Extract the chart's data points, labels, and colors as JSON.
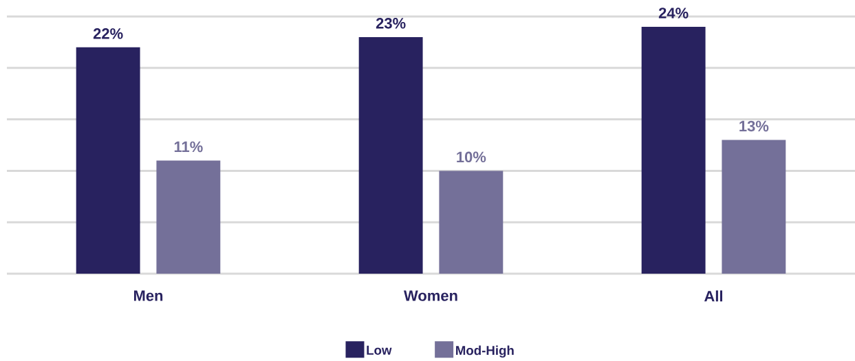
{
  "chart_data": {
    "type": "bar",
    "categories": [
      "Men",
      "Women",
      "All"
    ],
    "series": [
      {
        "name": "Low",
        "color": "#28225f",
        "values": [
          22,
          23,
          24
        ],
        "value_labels": [
          "22%",
          "23%",
          "24%"
        ]
      },
      {
        "name": "Mod-High",
        "color": "#747099",
        "values": [
          11,
          10,
          13
        ],
        "value_labels": [
          "11%",
          "10%",
          "13%"
        ]
      }
    ],
    "ylim": [
      0,
      25
    ],
    "yticks": [
      {
        "value": 0,
        "label": null
      },
      {
        "value": 5,
        "label": null
      },
      {
        "value": 10,
        "label": null
      },
      {
        "value": 15,
        "label": null
      },
      {
        "value": 20,
        "label": null
      },
      {
        "value": 25,
        "label": null
      }
    ],
    "grid": "y",
    "legend": "bottom",
    "tick_labels": "x"
  }
}
